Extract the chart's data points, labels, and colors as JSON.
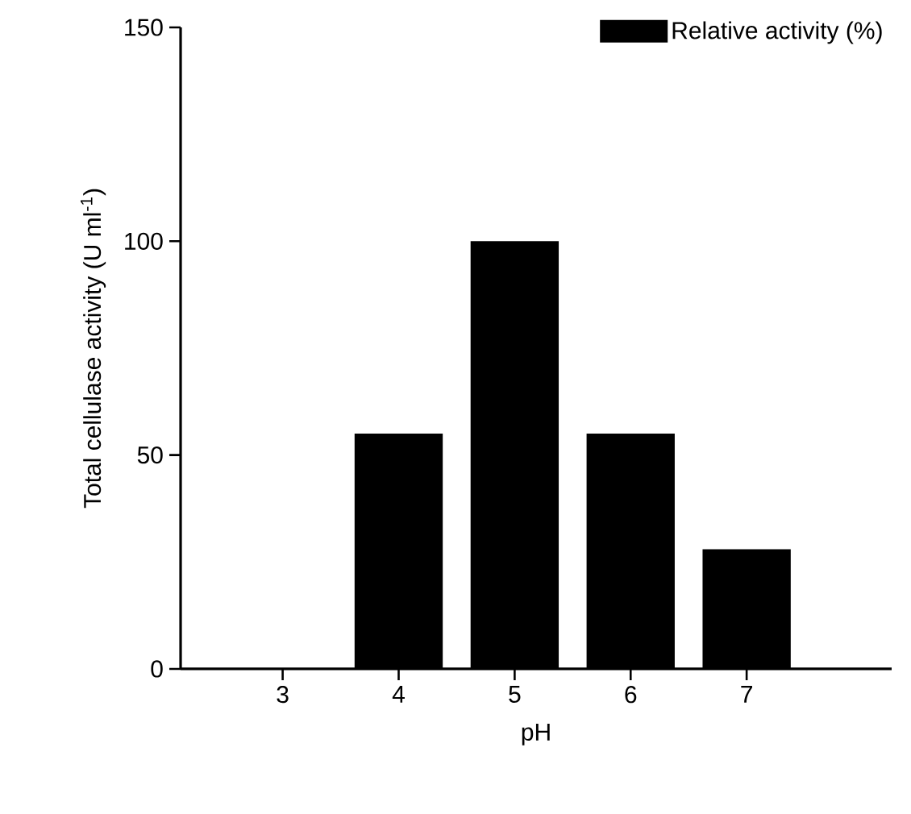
{
  "chart_data": {
    "type": "bar",
    "xlabel": "pH",
    "ylabel": "Total cellulase activity (U ml$^{-1}$)",
    "categories": [
      "3",
      "4",
      "5",
      "6",
      "7"
    ],
    "series": [
      {
        "name": "Relative activity (%)",
        "color": "#000000",
        "values": [
          0,
          55,
          100,
          55,
          28
        ]
      }
    ],
    "ylim": [
      0,
      150
    ],
    "yticks": [
      0,
      50,
      100,
      150
    ],
    "legend": "top right",
    "grid": false
  }
}
